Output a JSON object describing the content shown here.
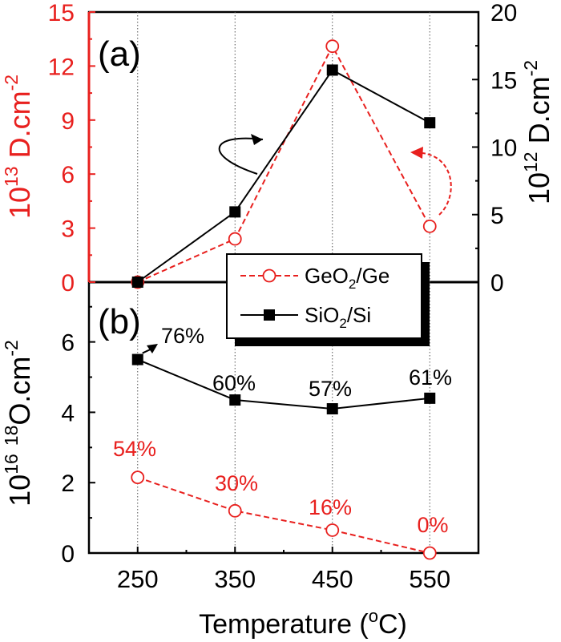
{
  "chart_data": [
    {
      "panel_label": "(a)",
      "type": "line",
      "x": [
        250,
        350,
        450,
        550
      ],
      "xlim": [
        200,
        600
      ],
      "xticks": [
        "250",
        "350",
        "450",
        "550"
      ],
      "xlabel": {
        "main": "Temperature (",
        "sup": "o",
        "tail": "C)"
      },
      "series": [
        {
          "name": "GeO2/Ge",
          "label_main": "GeO",
          "label_sub": "2",
          "label_tail": "/Ge",
          "axis": "left",
          "color": "#e8201e",
          "marker": "open-circle",
          "line": "dashed",
          "values": [
            0,
            2.4,
            13.1,
            3.1
          ]
        },
        {
          "name": "SiO2/Si",
          "label_main": "SiO",
          "label_sub": "2",
          "label_tail": "/Si",
          "axis": "right",
          "color": "#000000",
          "marker": "filled-square",
          "line": "solid",
          "values": [
            0,
            5.2,
            15.7,
            11.8
          ]
        }
      ],
      "left_axis": {
        "ylim": [
          0,
          15
        ],
        "ticks": [
          "0",
          "3",
          "6",
          "9",
          "12",
          "15"
        ],
        "label_pre": "10",
        "label_exp": "13",
        "label_unit": "  D.cm",
        "label_unit_exp": "-2",
        "color": "#e8201e"
      },
      "right_axis": {
        "ylim": [
          0,
          20
        ],
        "ticks": [
          "0",
          "5",
          "10",
          "15",
          "20"
        ],
        "label_pre": "10",
        "label_exp": "12",
        "label_unit": "  D.cm",
        "label_unit_exp": "-2",
        "color": "#000000"
      }
    },
    {
      "panel_label": "(b)",
      "type": "line",
      "x": [
        250,
        350,
        450,
        550
      ],
      "xlim": [
        200,
        600
      ],
      "ylim": [
        0,
        7.7
      ],
      "yticks": [
        "0",
        "2",
        "4",
        "6"
      ],
      "ylabel": {
        "pre": "10",
        "exp": "16",
        "mid": "  ",
        "iso": "18",
        "unit": "O.cm",
        "unit_exp": "-2"
      },
      "series": [
        {
          "name": "SiO2/Si",
          "color": "#000000",
          "marker": "filled-square",
          "line": "solid",
          "values": [
            5.5,
            4.35,
            4.1,
            4.4
          ],
          "annotations": [
            "76%",
            "60%",
            "57%",
            "61%"
          ]
        },
        {
          "name": "GeO2/Ge",
          "color": "#e8201e",
          "marker": "open-circle",
          "line": "dashed",
          "values": [
            2.15,
            1.2,
            0.65,
            0.0
          ],
          "annotations": [
            "54%",
            "30%",
            "16%",
            "0%"
          ]
        }
      ]
    }
  ]
}
